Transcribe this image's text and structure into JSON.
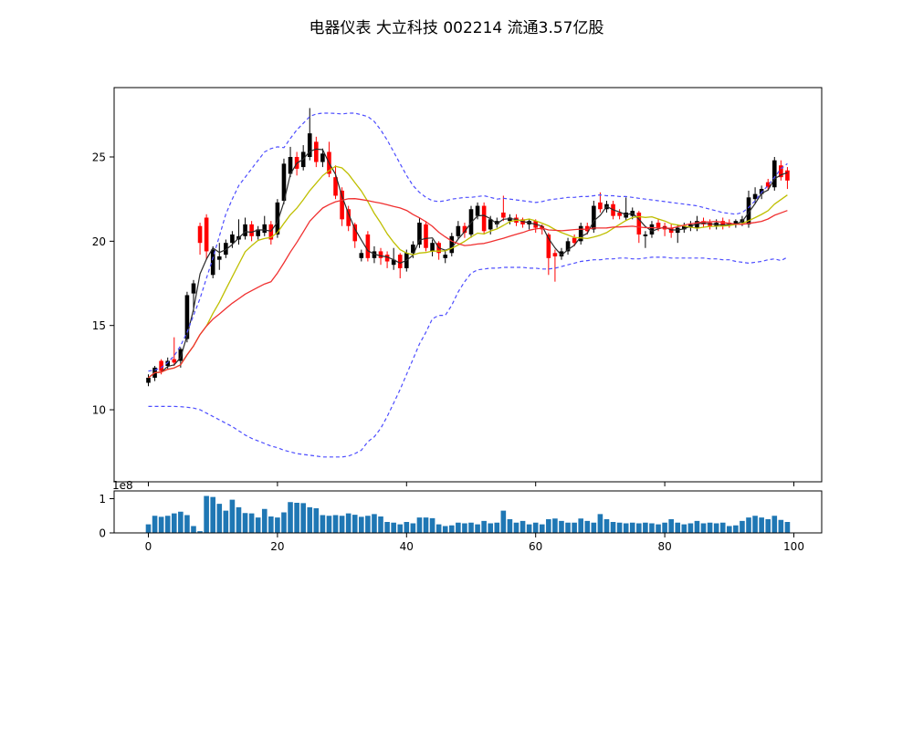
{
  "title": "电器仪表 大立科技 002214 流通3.57亿股",
  "chart_data": {
    "type": "candlestick",
    "title": "电器仪表 大立科技 002214 流通3.57亿股",
    "legend_position": "none",
    "grid": false,
    "xticks": [
      0,
      20,
      40,
      60,
      80,
      100
    ],
    "price_panel": {
      "yticks": [
        10,
        15,
        20,
        25
      ],
      "ylim": [
        5.8,
        29.1
      ],
      "ma_windows": {
        "fast": 3,
        "mid": 10,
        "slow": 20
      },
      "candles_ohlc": [
        [
          11.6,
          12.1,
          11.4,
          11.9
        ],
        [
          11.9,
          12.6,
          11.7,
          12.5
        ],
        [
          12.9,
          13.0,
          12.1,
          12.3
        ],
        [
          12.6,
          13.1,
          12.4,
          12.9
        ],
        [
          13.0,
          14.3,
          12.6,
          12.8
        ],
        [
          12.9,
          13.7,
          12.5,
          13.6
        ],
        [
          14.2,
          17.0,
          14.0,
          16.8
        ],
        [
          16.9,
          17.7,
          15.8,
          17.5
        ],
        [
          20.9,
          21.1,
          19.2,
          19.9
        ],
        [
          21.4,
          21.6,
          18.9,
          19.4
        ],
        [
          18.0,
          19.7,
          17.8,
          19.5
        ],
        [
          18.9,
          19.9,
          18.3,
          19.1
        ],
        [
          19.2,
          20.1,
          19.0,
          19.9
        ],
        [
          19.9,
          20.6,
          19.6,
          20.4
        ],
        [
          20.1,
          21.3,
          19.8,
          20.3
        ],
        [
          20.3,
          21.4,
          20.1,
          21.0
        ],
        [
          21.0,
          21.2,
          20.0,
          20.3
        ],
        [
          20.3,
          20.9,
          20.1,
          20.7
        ],
        [
          20.5,
          21.5,
          20.3,
          21.0
        ],
        [
          21.0,
          21.2,
          19.8,
          20.1
        ],
        [
          20.4,
          22.5,
          20.2,
          22.3
        ],
        [
          22.4,
          24.9,
          22.2,
          24.6
        ],
        [
          24.0,
          25.6,
          23.8,
          25.0
        ],
        [
          25.0,
          25.3,
          23.9,
          24.3
        ],
        [
          24.4,
          25.7,
          24.2,
          25.3
        ],
        [
          25.0,
          27.9,
          24.8,
          26.4
        ],
        [
          25.9,
          26.2,
          24.4,
          24.7
        ],
        [
          24.7,
          25.5,
          24.4,
          25.2
        ],
        [
          25.3,
          25.9,
          23.8,
          24.0
        ],
        [
          23.8,
          24.5,
          22.5,
          22.7
        ],
        [
          23.0,
          23.2,
          20.9,
          21.3
        ],
        [
          21.9,
          22.1,
          20.6,
          20.9
        ],
        [
          21.0,
          21.1,
          19.6,
          20.0
        ],
        [
          19.0,
          19.5,
          18.8,
          19.3
        ],
        [
          20.4,
          20.6,
          18.8,
          19.0
        ],
        [
          19.0,
          19.7,
          18.7,
          19.4
        ],
        [
          19.4,
          19.6,
          18.6,
          19.0
        ],
        [
          19.2,
          19.4,
          18.4,
          18.8
        ],
        [
          18.6,
          19.6,
          18.3,
          18.9
        ],
        [
          19.2,
          19.3,
          17.8,
          18.4
        ],
        [
          18.4,
          19.5,
          18.2,
          19.3
        ],
        [
          19.3,
          20.0,
          19.0,
          19.8
        ],
        [
          19.8,
          21.4,
          19.6,
          21.1
        ],
        [
          21.0,
          21.2,
          19.4,
          19.6
        ],
        [
          19.4,
          20.1,
          19.1,
          19.9
        ],
        [
          19.9,
          20.0,
          18.9,
          19.3
        ],
        [
          19.0,
          19.4,
          18.7,
          19.2
        ],
        [
          19.3,
          20.5,
          19.1,
          20.3
        ],
        [
          20.3,
          21.2,
          20.1,
          20.9
        ],
        [
          20.9,
          21.1,
          20.2,
          20.5
        ],
        [
          20.4,
          22.1,
          20.2,
          21.9
        ],
        [
          21.5,
          22.3,
          21.3,
          22.1
        ],
        [
          22.1,
          22.3,
          20.4,
          20.6
        ],
        [
          20.7,
          21.5,
          20.4,
          21.3
        ],
        [
          21.0,
          21.4,
          20.8,
          21.2
        ],
        [
          21.7,
          22.7,
          21.2,
          21.4
        ],
        [
          21.2,
          21.6,
          21.0,
          21.4
        ],
        [
          21.4,
          21.6,
          20.9,
          21.1
        ],
        [
          21.3,
          21.4,
          20.8,
          21.0
        ],
        [
          21.0,
          21.3,
          20.7,
          21.2
        ],
        [
          21.2,
          21.3,
          20.5,
          20.8
        ],
        [
          20.9,
          21.0,
          20.4,
          20.7
        ],
        [
          20.4,
          20.5,
          18.0,
          19.0
        ],
        [
          19.3,
          19.5,
          17.6,
          19.1
        ],
        [
          19.1,
          19.6,
          18.9,
          19.4
        ],
        [
          19.4,
          20.2,
          19.2,
          20.0
        ],
        [
          20.2,
          20.4,
          19.7,
          19.9
        ],
        [
          20.0,
          21.1,
          19.8,
          20.9
        ],
        [
          20.9,
          21.1,
          20.4,
          20.6
        ],
        [
          20.7,
          22.4,
          20.5,
          22.1
        ],
        [
          22.3,
          22.9,
          21.7,
          21.9
        ],
        [
          21.9,
          22.4,
          21.7,
          22.2
        ],
        [
          22.2,
          22.4,
          21.3,
          21.5
        ],
        [
          21.7,
          21.9,
          21.3,
          21.5
        ],
        [
          21.4,
          22.6,
          21.2,
          21.7
        ],
        [
          21.5,
          22.0,
          21.3,
          21.8
        ],
        [
          21.7,
          21.8,
          19.9,
          20.4
        ],
        [
          20.3,
          20.6,
          19.6,
          20.4
        ],
        [
          20.4,
          21.2,
          20.2,
          21.0
        ],
        [
          21.1,
          21.3,
          20.6,
          20.8
        ],
        [
          20.9,
          21.1,
          20.3,
          20.7
        ],
        [
          20.8,
          21.0,
          20.2,
          20.5
        ],
        [
          20.5,
          21.0,
          19.9,
          20.8
        ],
        [
          20.7,
          21.1,
          20.5,
          20.9
        ],
        [
          20.8,
          21.2,
          20.6,
          21.0
        ],
        [
          20.8,
          21.5,
          20.6,
          21.2
        ],
        [
          21.2,
          21.4,
          20.8,
          21.0
        ],
        [
          21.1,
          21.3,
          20.7,
          20.9
        ],
        [
          20.9,
          21.3,
          20.7,
          21.1
        ],
        [
          21.2,
          21.4,
          20.7,
          20.9
        ],
        [
          21.1,
          21.3,
          20.8,
          21.0
        ],
        [
          21.0,
          21.3,
          20.8,
          21.2
        ],
        [
          21.1,
          21.5,
          20.9,
          21.3
        ],
        [
          21.0,
          23.0,
          20.8,
          22.6
        ],
        [
          22.5,
          23.2,
          22.2,
          22.8
        ],
        [
          22.8,
          23.3,
          22.5,
          23.1
        ],
        [
          23.5,
          23.7,
          23.0,
          23.2
        ],
        [
          23.2,
          25.0,
          23.0,
          24.8
        ],
        [
          24.5,
          24.8,
          23.6,
          23.8
        ],
        [
          24.2,
          24.4,
          23.1,
          23.6
        ]
      ],
      "bollinger_upper": [
        12.3,
        12.35,
        12.5,
        12.8,
        13.2,
        13.8,
        14.6,
        15.6,
        16.6,
        17.8,
        19.0,
        20.3,
        21.6,
        22.5,
        23.3,
        23.8,
        24.3,
        24.8,
        25.3,
        25.5,
        25.6,
        25.55,
        26.1,
        26.6,
        27.0,
        27.4,
        27.55,
        27.6,
        27.6,
        27.58,
        27.55,
        27.6,
        27.6,
        27.5,
        27.4,
        27.1,
        26.6,
        26.0,
        25.3,
        24.6,
        23.9,
        23.3,
        22.9,
        22.6,
        22.4,
        22.35,
        22.4,
        22.5,
        22.55,
        22.6,
        22.6,
        22.65,
        22.7,
        22.6,
        22.5,
        22.55,
        22.5,
        22.45,
        22.4,
        22.35,
        22.3,
        22.35,
        22.45,
        22.5,
        22.55,
        22.6,
        22.6,
        22.65,
        22.65,
        22.7,
        22.75,
        22.7,
        22.7,
        22.65,
        22.65,
        22.6,
        22.55,
        22.5,
        22.45,
        22.4,
        22.35,
        22.3,
        22.25,
        22.2,
        22.15,
        22.1,
        22.0,
        21.9,
        21.8,
        21.7,
        21.65,
        21.6,
        21.7,
        22.0,
        22.4,
        22.9,
        23.3,
        23.8,
        24.3,
        24.6
      ],
      "bollinger_lower": [
        10.2,
        10.2,
        10.2,
        10.2,
        10.2,
        10.18,
        10.15,
        10.1,
        10.0,
        9.8,
        9.6,
        9.4,
        9.2,
        9.0,
        8.75,
        8.5,
        8.3,
        8.15,
        8.0,
        7.85,
        7.75,
        7.6,
        7.5,
        7.4,
        7.35,
        7.3,
        7.25,
        7.2,
        7.2,
        7.2,
        7.2,
        7.25,
        7.4,
        7.6,
        8.1,
        8.4,
        8.9,
        9.6,
        10.4,
        11.2,
        12.1,
        13.0,
        13.9,
        14.6,
        15.4,
        15.6,
        15.6,
        16.2,
        17.0,
        17.6,
        18.1,
        18.3,
        18.35,
        18.4,
        18.4,
        18.45,
        18.45,
        18.45,
        18.45,
        18.4,
        18.4,
        18.35,
        18.35,
        18.4,
        18.5,
        18.6,
        18.7,
        18.8,
        18.85,
        18.9,
        18.9,
        18.95,
        18.95,
        19.0,
        19.0,
        18.95,
        18.95,
        19.0,
        19.05,
        19.05,
        19.05,
        19.0,
        19.0,
        19.0,
        19.0,
        19.0,
        19.0,
        18.95,
        18.95,
        18.9,
        18.9,
        18.8,
        18.75,
        18.7,
        18.75,
        18.8,
        18.9,
        18.95,
        18.85,
        19.05
      ],
      "colors": {
        "candle_up": "#000000",
        "candle_down": "#ff0000",
        "band": "#4d4dff",
        "ma_fast": "#2b2b2b",
        "ma_mid": "#bfbf00",
        "ma_slow": "#f03030"
      }
    },
    "volume_panel": {
      "scale_label": "1e8",
      "yticks": [
        0,
        1
      ],
      "ylim": [
        0,
        1.23
      ],
      "bar_color": "#1f77b4",
      "values": [
        0.25,
        0.5,
        0.47,
        0.5,
        0.57,
        0.62,
        0.52,
        0.2,
        0.05,
        1.08,
        1.05,
        0.85,
        0.65,
        0.97,
        0.75,
        0.58,
        0.57,
        0.45,
        0.7,
        0.48,
        0.45,
        0.6,
        0.9,
        0.88,
        0.87,
        0.75,
        0.72,
        0.52,
        0.5,
        0.52,
        0.5,
        0.57,
        0.53,
        0.47,
        0.5,
        0.55,
        0.48,
        0.32,
        0.3,
        0.25,
        0.32,
        0.28,
        0.45,
        0.45,
        0.43,
        0.25,
        0.2,
        0.22,
        0.3,
        0.28,
        0.3,
        0.25,
        0.35,
        0.28,
        0.3,
        0.65,
        0.4,
        0.3,
        0.35,
        0.25,
        0.3,
        0.25,
        0.4,
        0.42,
        0.35,
        0.3,
        0.3,
        0.42,
        0.35,
        0.3,
        0.55,
        0.4,
        0.32,
        0.3,
        0.28,
        0.3,
        0.28,
        0.3,
        0.28,
        0.25,
        0.3,
        0.4,
        0.3,
        0.25,
        0.28,
        0.35,
        0.28,
        0.3,
        0.28,
        0.3,
        0.2,
        0.22,
        0.35,
        0.45,
        0.5,
        0.45,
        0.4,
        0.5,
        0.38,
        0.32
      ]
    }
  }
}
